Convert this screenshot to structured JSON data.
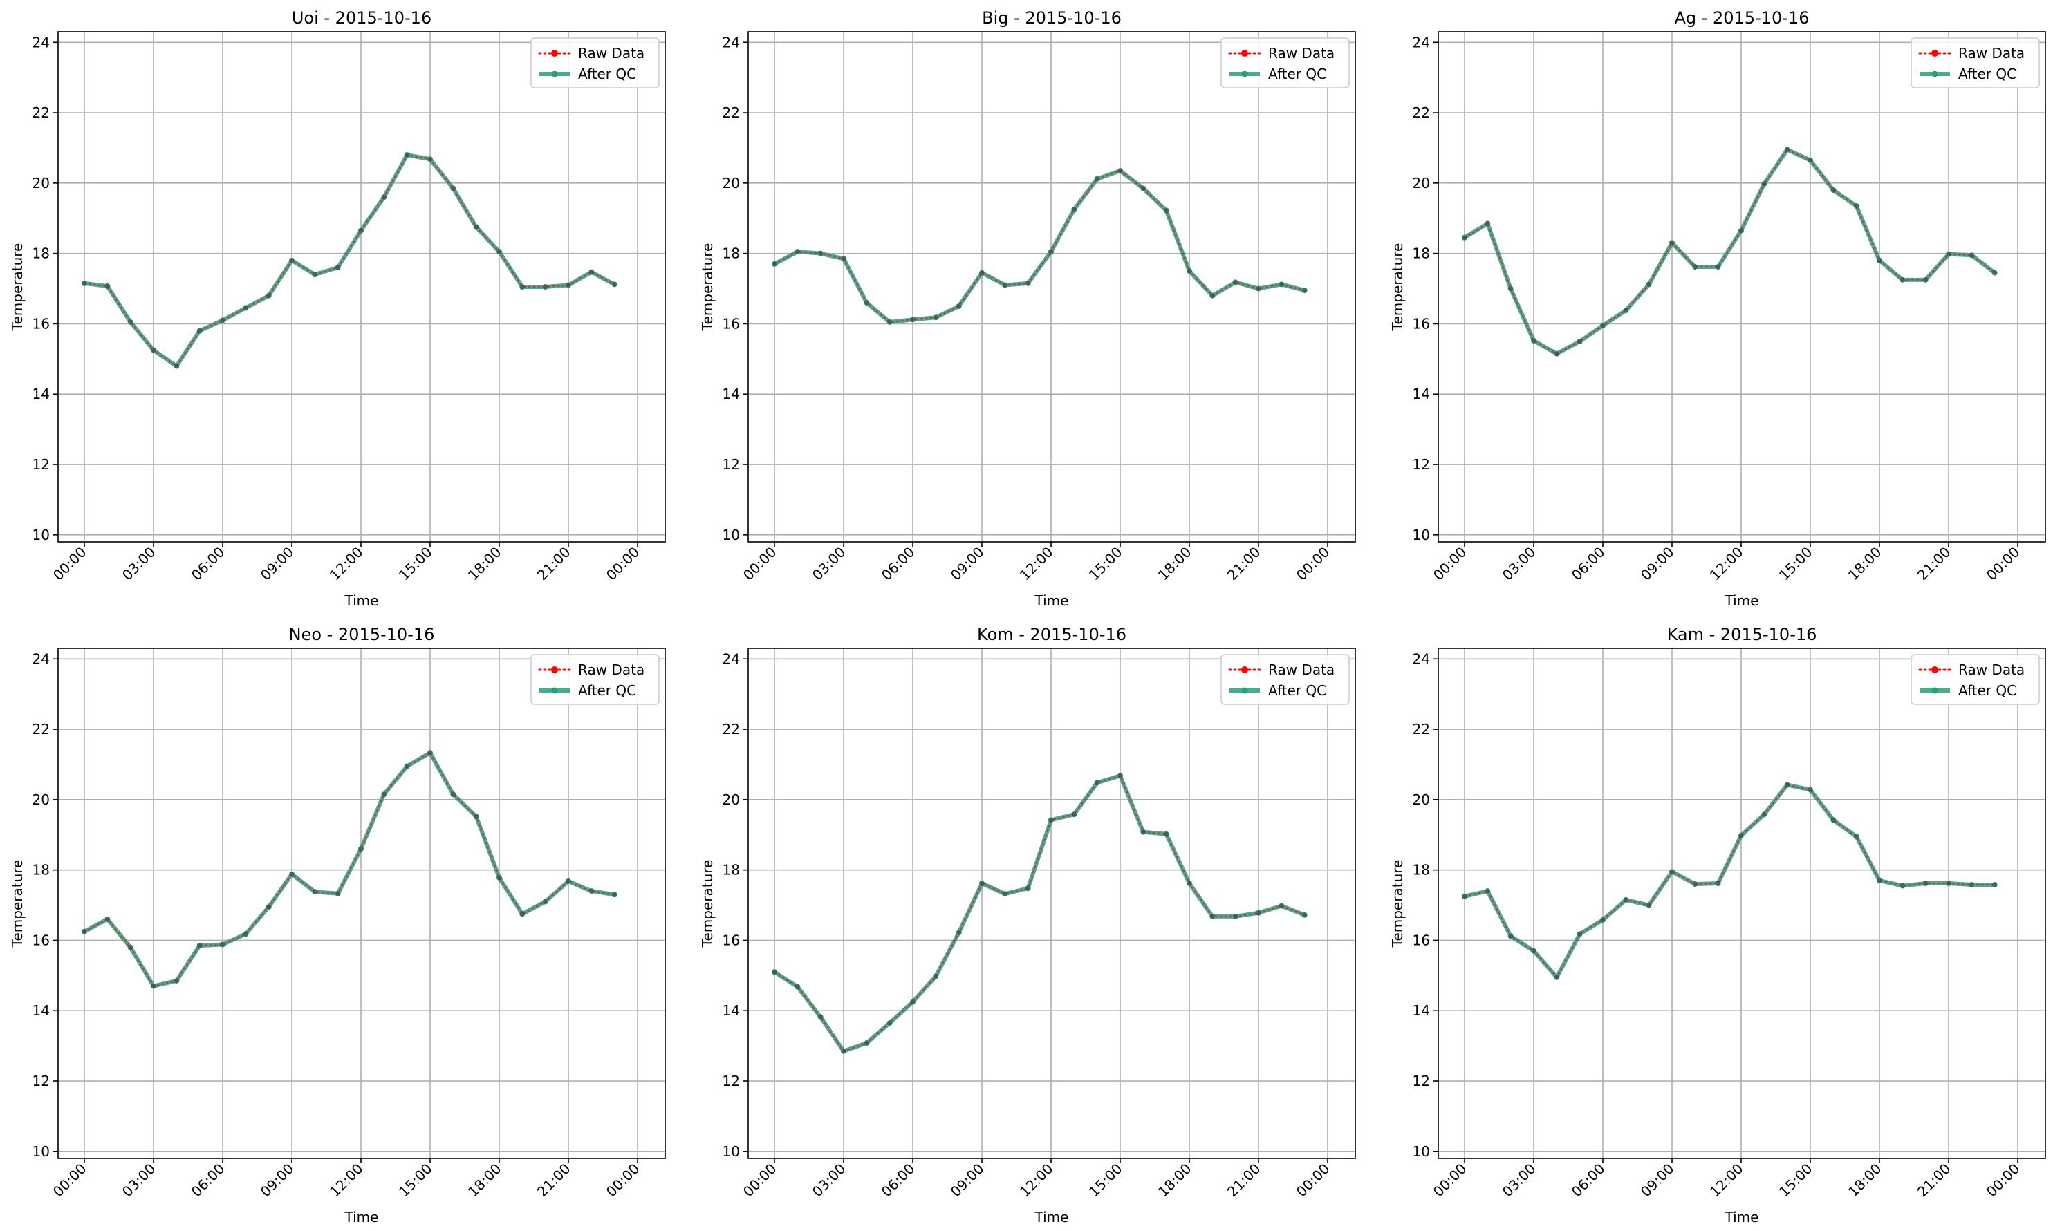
{
  "chart_data": [
    {
      "type": "line",
      "title": "Uoi - 2015-10-16",
      "xlabel": "Time",
      "ylabel": "Temperature",
      "ylim": [
        9.8,
        24.3
      ],
      "yticks": [
        "10",
        "12",
        "14",
        "16",
        "18",
        "20",
        "22",
        "24"
      ],
      "xticks": [
        "00:00",
        "03:00",
        "06:00",
        "09:00",
        "12:00",
        "15:00",
        "18:00",
        "21:00",
        "00:00"
      ],
      "grid": true,
      "legend_position": "top-right",
      "x": [
        "00:00",
        "01:00",
        "02:00",
        "03:00",
        "04:00",
        "05:00",
        "06:00",
        "07:00",
        "08:00",
        "09:00",
        "10:00",
        "11:00",
        "12:00",
        "13:00",
        "14:00",
        "15:00",
        "16:00",
        "17:00",
        "18:00",
        "19:00",
        "20:00",
        "21:00",
        "22:00",
        "23:00"
      ],
      "series": [
        {
          "name": "Raw Data",
          "color": "#ff0000",
          "style": "dotted",
          "values": [
            17.15,
            17.07,
            16.05,
            15.25,
            14.8,
            15.8,
            16.1,
            16.45,
            16.8,
            17.8,
            17.4,
            17.6,
            18.65,
            19.6,
            20.8,
            20.68,
            19.85,
            18.75,
            18.05,
            17.05,
            17.05,
            17.1,
            17.47,
            17.12
          ]
        },
        {
          "name": "After QC",
          "color": "#2a9d7a",
          "style": "solid",
          "values": [
            17.15,
            17.07,
            16.05,
            15.25,
            14.8,
            15.8,
            16.1,
            16.45,
            16.8,
            17.8,
            17.4,
            17.6,
            18.65,
            19.6,
            20.8,
            20.68,
            19.85,
            18.75,
            18.05,
            17.05,
            17.05,
            17.1,
            17.47,
            17.12
          ]
        }
      ]
    },
    {
      "type": "line",
      "title": "Big - 2015-10-16",
      "xlabel": "Time",
      "ylabel": "Temperature",
      "ylim": [
        9.8,
        24.3
      ],
      "yticks": [
        "10",
        "12",
        "14",
        "16",
        "18",
        "20",
        "22",
        "24"
      ],
      "xticks": [
        "00:00",
        "03:00",
        "06:00",
        "09:00",
        "12:00",
        "15:00",
        "18:00",
        "21:00",
        "00:00"
      ],
      "grid": true,
      "legend_position": "top-right",
      "x": [
        "00:00",
        "01:00",
        "02:00",
        "03:00",
        "04:00",
        "05:00",
        "06:00",
        "07:00",
        "08:00",
        "09:00",
        "10:00",
        "11:00",
        "12:00",
        "13:00",
        "14:00",
        "15:00",
        "16:00",
        "17:00",
        "18:00",
        "19:00",
        "20:00",
        "21:00",
        "22:00",
        "23:00"
      ],
      "series": [
        {
          "name": "Raw Data",
          "color": "#ff0000",
          "style": "dotted",
          "values": [
            17.7,
            18.05,
            18.0,
            17.85,
            16.6,
            16.05,
            16.12,
            16.18,
            16.5,
            17.45,
            17.1,
            17.15,
            18.05,
            19.25,
            20.12,
            20.35,
            19.85,
            19.22,
            17.5,
            16.8,
            17.18,
            17.0,
            17.12,
            16.95
          ]
        },
        {
          "name": "After QC",
          "color": "#2a9d7a",
          "style": "solid",
          "values": [
            17.7,
            18.05,
            18.0,
            17.85,
            16.6,
            16.05,
            16.12,
            16.18,
            16.5,
            17.45,
            17.1,
            17.15,
            18.05,
            19.25,
            20.12,
            20.35,
            19.85,
            19.22,
            17.5,
            16.8,
            17.18,
            17.0,
            17.12,
            16.95
          ]
        }
      ]
    },
    {
      "type": "line",
      "title": "Ag - 2015-10-16",
      "xlabel": "Time",
      "ylabel": "Temperature",
      "ylim": [
        9.8,
        24.3
      ],
      "yticks": [
        "10",
        "12",
        "14",
        "16",
        "18",
        "20",
        "22",
        "24"
      ],
      "xticks": [
        "00:00",
        "03:00",
        "06:00",
        "09:00",
        "12:00",
        "15:00",
        "18:00",
        "21:00",
        "00:00"
      ],
      "grid": true,
      "legend_position": "top-right",
      "x": [
        "00:00",
        "01:00",
        "02:00",
        "03:00",
        "04:00",
        "05:00",
        "06:00",
        "07:00",
        "08:00",
        "09:00",
        "10:00",
        "11:00",
        "12:00",
        "13:00",
        "14:00",
        "15:00",
        "16:00",
        "17:00",
        "18:00",
        "19:00",
        "20:00",
        "21:00",
        "22:00",
        "23:00"
      ],
      "series": [
        {
          "name": "Raw Data",
          "color": "#ff0000",
          "style": "dotted",
          "values": [
            18.45,
            18.85,
            17.0,
            15.52,
            15.15,
            15.5,
            15.95,
            16.38,
            17.12,
            18.3,
            17.62,
            17.62,
            18.65,
            19.98,
            20.95,
            20.65,
            19.8,
            19.35,
            17.8,
            17.25,
            17.25,
            17.98,
            17.95,
            17.45
          ]
        },
        {
          "name": "After QC",
          "color": "#2a9d7a",
          "style": "solid",
          "values": [
            18.45,
            18.85,
            17.0,
            15.52,
            15.15,
            15.5,
            15.95,
            16.38,
            17.12,
            18.3,
            17.62,
            17.62,
            18.65,
            19.98,
            20.95,
            20.65,
            19.8,
            19.35,
            17.8,
            17.25,
            17.25,
            17.98,
            17.95,
            17.45
          ]
        }
      ]
    },
    {
      "type": "line",
      "title": "Neo - 2015-10-16",
      "xlabel": "Time",
      "ylabel": "Temperature",
      "ylim": [
        9.8,
        24.3
      ],
      "yticks": [
        "10",
        "12",
        "14",
        "16",
        "18",
        "20",
        "22",
        "24"
      ],
      "xticks": [
        "00:00",
        "03:00",
        "06:00",
        "09:00",
        "12:00",
        "15:00",
        "18:00",
        "21:00",
        "00:00"
      ],
      "grid": true,
      "legend_position": "top-right",
      "x": [
        "00:00",
        "01:00",
        "02:00",
        "03:00",
        "04:00",
        "05:00",
        "06:00",
        "07:00",
        "08:00",
        "09:00",
        "10:00",
        "11:00",
        "12:00",
        "13:00",
        "14:00",
        "15:00",
        "16:00",
        "17:00",
        "18:00",
        "19:00",
        "20:00",
        "21:00",
        "22:00",
        "23:00"
      ],
      "series": [
        {
          "name": "Raw Data",
          "color": "#ff0000",
          "style": "dotted",
          "values": [
            16.25,
            16.6,
            15.8,
            14.7,
            14.85,
            15.85,
            15.88,
            16.18,
            16.95,
            17.88,
            17.38,
            17.33,
            18.6,
            20.15,
            20.95,
            21.33,
            20.15,
            19.52,
            17.78,
            16.75,
            17.1,
            17.68,
            17.4,
            17.3
          ]
        },
        {
          "name": "After QC",
          "color": "#2a9d7a",
          "style": "solid",
          "values": [
            16.25,
            16.6,
            15.8,
            14.7,
            14.85,
            15.85,
            15.88,
            16.18,
            16.95,
            17.88,
            17.38,
            17.33,
            18.6,
            20.15,
            20.95,
            21.33,
            20.15,
            19.52,
            17.78,
            16.75,
            17.1,
            17.68,
            17.4,
            17.3
          ]
        }
      ]
    },
    {
      "type": "line",
      "title": "Kom - 2015-10-16",
      "xlabel": "Time",
      "ylabel": "Temperature",
      "ylim": [
        9.8,
        24.3
      ],
      "yticks": [
        "10",
        "12",
        "14",
        "16",
        "18",
        "20",
        "22",
        "24"
      ],
      "xticks": [
        "00:00",
        "03:00",
        "06:00",
        "09:00",
        "12:00",
        "15:00",
        "18:00",
        "21:00",
        "00:00"
      ],
      "grid": true,
      "legend_position": "top-right",
      "x": [
        "00:00",
        "01:00",
        "02:00",
        "03:00",
        "04:00",
        "05:00",
        "06:00",
        "07:00",
        "08:00",
        "09:00",
        "10:00",
        "11:00",
        "12:00",
        "13:00",
        "14:00",
        "15:00",
        "16:00",
        "17:00",
        "18:00",
        "19:00",
        "20:00",
        "21:00",
        "22:00",
        "23:00"
      ],
      "series": [
        {
          "name": "Raw Data",
          "color": "#ff0000",
          "style": "dotted",
          "values": [
            15.1,
            14.68,
            13.82,
            12.85,
            13.08,
            13.65,
            14.25,
            14.98,
            16.22,
            17.62,
            17.32,
            17.48,
            19.42,
            19.58,
            20.48,
            20.68,
            19.08,
            19.02,
            17.62,
            16.68,
            16.68,
            16.78,
            16.98,
            16.72
          ]
        },
        {
          "name": "After QC",
          "color": "#2a9d7a",
          "style": "solid",
          "values": [
            15.1,
            14.68,
            13.82,
            12.85,
            13.08,
            13.65,
            14.25,
            14.98,
            16.22,
            17.62,
            17.32,
            17.48,
            19.42,
            19.58,
            20.48,
            20.68,
            19.08,
            19.02,
            17.62,
            16.68,
            16.68,
            16.78,
            16.98,
            16.72
          ]
        }
      ]
    },
    {
      "type": "line",
      "title": "Kam - 2015-10-16",
      "xlabel": "Time",
      "ylabel": "Temperature",
      "ylim": [
        9.8,
        24.3
      ],
      "yticks": [
        "10",
        "12",
        "14",
        "16",
        "18",
        "20",
        "22",
        "24"
      ],
      "xticks": [
        "00:00",
        "03:00",
        "06:00",
        "09:00",
        "12:00",
        "15:00",
        "18:00",
        "21:00",
        "00:00"
      ],
      "grid": true,
      "legend_position": "top-right",
      "x": [
        "00:00",
        "01:00",
        "02:00",
        "03:00",
        "04:00",
        "05:00",
        "06:00",
        "07:00",
        "08:00",
        "09:00",
        "10:00",
        "11:00",
        "12:00",
        "13:00",
        "14:00",
        "15:00",
        "16:00",
        "17:00",
        "18:00",
        "19:00",
        "20:00",
        "21:00",
        "22:00",
        "23:00"
      ],
      "series": [
        {
          "name": "Raw Data",
          "color": "#ff0000",
          "style": "dotted",
          "values": [
            17.25,
            17.4,
            16.12,
            15.7,
            14.95,
            16.18,
            16.58,
            17.15,
            17.0,
            17.95,
            17.6,
            17.62,
            18.98,
            19.58,
            20.42,
            20.28,
            19.42,
            18.95,
            17.7,
            17.55,
            17.62,
            17.62,
            17.58,
            17.58
          ]
        },
        {
          "name": "After QC",
          "color": "#2a9d7a",
          "style": "solid",
          "values": [
            17.25,
            17.4,
            16.12,
            15.7,
            14.95,
            16.18,
            16.58,
            17.15,
            17.0,
            17.95,
            17.6,
            17.62,
            18.98,
            19.58,
            20.42,
            20.28,
            19.42,
            18.95,
            17.7,
            17.55,
            17.62,
            17.62,
            17.58,
            17.58
          ]
        }
      ]
    }
  ]
}
